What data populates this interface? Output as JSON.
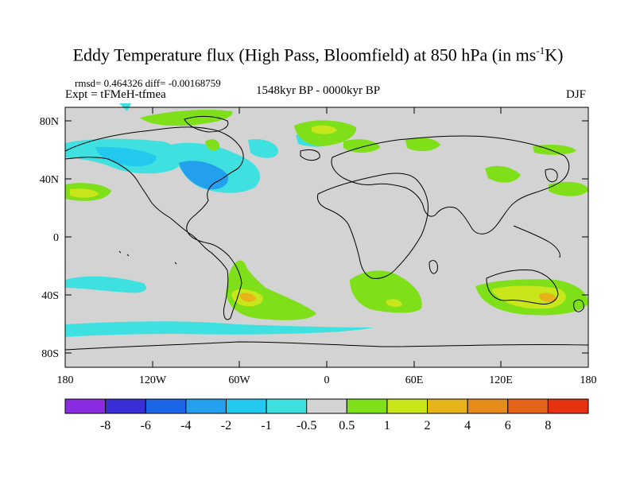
{
  "header": {
    "title_main": "Eddy Temperature flux (High Pass, Bloomfield) at 850 hPa (in ms",
    "title_sup": "-1",
    "title_end": "K)",
    "stats": "rmsd= 0.464326 diff= -0.00168759",
    "experiment": "Expt = tFMeH-tfmea",
    "period": "1548kyr BP - 0000kyr BP",
    "season": "DJF"
  },
  "map": {
    "lat_labels": [
      "80N",
      "40N",
      "0",
      "40S",
      "80S"
    ],
    "lon_labels": [
      "180",
      "120W",
      "60W",
      "0",
      "60E",
      "120E",
      "180"
    ],
    "ocean_color": "#d3d3d3"
  },
  "colorbar": {
    "labels": [
      "-8",
      "-6",
      "-4",
      "-2",
      "-1",
      "-0.5",
      "0.5",
      "1",
      "2",
      "4",
      "6",
      "8"
    ],
    "colors": [
      "#8a2be2",
      "#3a2fd6",
      "#1a66e6",
      "#22a0ee",
      "#22c8ee",
      "#3fe0e0",
      "#d3d3d3",
      "#7fe01a",
      "#c8e61a",
      "#e6b41a",
      "#e68a1a",
      "#e6641a",
      "#e6320f"
    ]
  }
}
